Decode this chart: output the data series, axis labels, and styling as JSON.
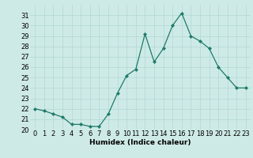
{
  "x": [
    0,
    1,
    2,
    3,
    4,
    5,
    6,
    7,
    8,
    9,
    10,
    11,
    12,
    13,
    14,
    15,
    16,
    17,
    18,
    19,
    20,
    21,
    22,
    23
  ],
  "y": [
    22.0,
    21.8,
    21.5,
    21.2,
    20.5,
    20.5,
    20.3,
    20.3,
    21.5,
    23.5,
    25.2,
    25.8,
    29.2,
    26.5,
    27.8,
    30.0,
    31.2,
    29.0,
    28.5,
    27.8,
    26.0,
    25.0,
    24.0,
    24.0
  ],
  "xlabel": "Humidex (Indice chaleur)",
  "ylim": [
    20,
    32
  ],
  "xlim": [
    -0.5,
    23.5
  ],
  "yticks": [
    20,
    21,
    22,
    23,
    24,
    25,
    26,
    27,
    28,
    29,
    30,
    31
  ],
  "xticks": [
    0,
    1,
    2,
    3,
    4,
    5,
    6,
    7,
    8,
    9,
    10,
    11,
    12,
    13,
    14,
    15,
    16,
    17,
    18,
    19,
    20,
    21,
    22,
    23
  ],
  "line_color": "#1e7b69",
  "marker_color": "#1e7b69",
  "bg_color": "#ceeae7",
  "grid_color": "#b0d8d4",
  "label_fontsize": 6.5,
  "tick_fontsize": 6
}
